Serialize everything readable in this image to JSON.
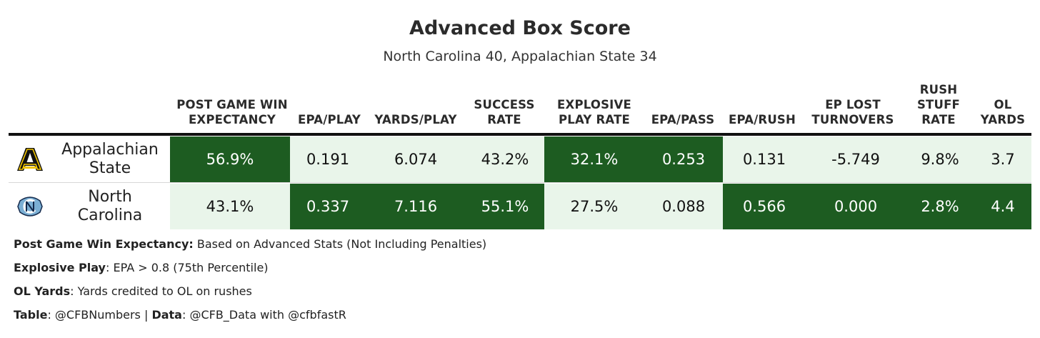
{
  "title": "Advanced Box Score",
  "subtitle": "North Carolina 40, Appalachian State 34",
  "columns": [
    {
      "line1": "POST GAME WIN",
      "line2": "EXPECTANCY"
    },
    {
      "line1": "",
      "line2": "EPA/PLAY"
    },
    {
      "line1": "",
      "line2": "YARDS/PLAY"
    },
    {
      "line1": "SUCCESS",
      "line2": "RATE"
    },
    {
      "line1": "EXPLOSIVE",
      "line2": "PLAY RATE"
    },
    {
      "line1": "",
      "line2": "EPA/PASS"
    },
    {
      "line1": "",
      "line2": "EPA/RUSH"
    },
    {
      "line1": "EP LOST",
      "line2": "TURNOVERS"
    },
    {
      "line1": "RUSH",
      "line2": "STUFF",
      "line3": "RATE"
    },
    {
      "line1": "OL",
      "line2": "YARDS"
    }
  ],
  "rows": [
    {
      "team_line1": "Appalachian",
      "team_line2": "State",
      "logo": "appalachian-state-logo",
      "values": [
        "56.9%",
        "0.191",
        "6.074",
        "43.2%",
        "32.1%",
        "0.253",
        "0.131",
        "-5.749",
        "9.8%",
        "3.7"
      ],
      "shading": [
        "dark",
        "light",
        "light",
        "light",
        "dark",
        "dark",
        "light",
        "light",
        "light",
        "light"
      ]
    },
    {
      "team_line1": "North",
      "team_line2": "Carolina",
      "logo": "north-carolina-logo",
      "values": [
        "43.1%",
        "0.337",
        "7.116",
        "55.1%",
        "27.5%",
        "0.088",
        "0.566",
        "0.000",
        "2.8%",
        "4.4"
      ],
      "shading": [
        "light",
        "dark",
        "dark",
        "dark",
        "light",
        "light",
        "dark",
        "dark",
        "dark",
        "dark"
      ]
    }
  ],
  "colors": {
    "dark": "#1d5c21",
    "light": "#e9f5ea",
    "rule": "#111111"
  },
  "notes": [
    {
      "label": "Post Game Win Expectancy:",
      "text": " Based on Advanced Stats (Not Including Penalties)"
    },
    {
      "label": "Explosive Play",
      "text": ": EPA > 0.8 (75th Percentile)"
    },
    {
      "label": "OL Yards",
      "text": ": Yards credited to OL on rushes"
    },
    {
      "label": "Table",
      "text": ": @CFBNumbers | ",
      "label2": "Data",
      "text2": ": @CFB_Data with @cfbfastR"
    }
  ]
}
